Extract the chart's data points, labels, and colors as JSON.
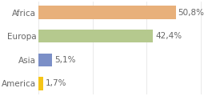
{
  "categories": [
    "America",
    "Asia",
    "Europa",
    "Africa"
  ],
  "values": [
    1.7,
    5.1,
    42.4,
    50.8
  ],
  "labels": [
    "1,7%",
    "5,1%",
    "42,4%",
    "50,8%"
  ],
  "bar_colors": [
    "#f5c518",
    "#7b8fc7",
    "#b5c98e",
    "#e8b07a"
  ],
  "background_color": "#ffffff",
  "xlim": [
    0,
    68
  ],
  "label_fontsize": 7.5,
  "tick_fontsize": 7.5,
  "bar_height": 0.55
}
